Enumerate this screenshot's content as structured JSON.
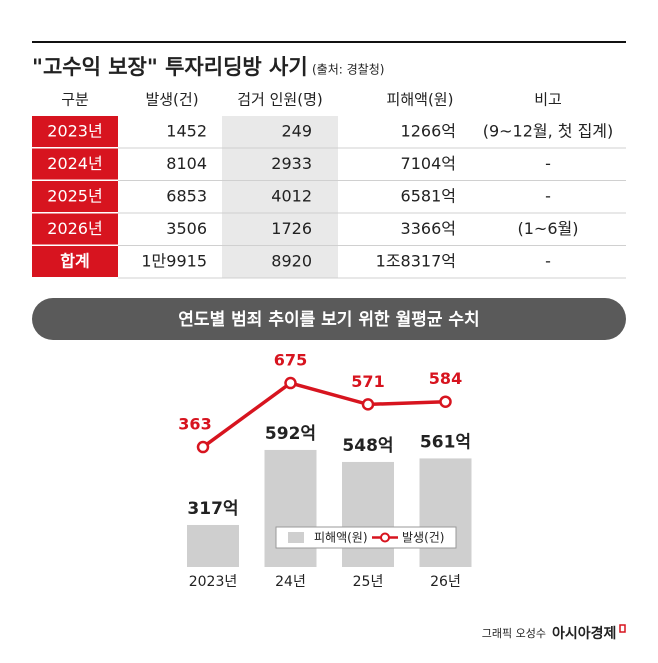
{
  "header": {
    "title": "\"고수익 보장\" 투자리딩방 사기",
    "source": "(출처: 경찰청)"
  },
  "table": {
    "columns": [
      "구분",
      "발생(건)",
      "검거 인원(명)",
      "피해액(원)",
      "비고"
    ],
    "rows": [
      [
        "2023년",
        1452,
        249,
        "1266억",
        "(9~12월, 첫 집계)"
      ],
      [
        "2024년",
        8104,
        2933,
        "7104억",
        "-"
      ],
      [
        "2025년",
        6853,
        4012,
        "6581억",
        "-"
      ],
      [
        "2026년",
        3506,
        1726,
        "3366억",
        "(1~6월)"
      ],
      [
        "합계",
        "1만9915",
        8920,
        "1조8317억",
        "-"
      ]
    ]
  },
  "chart_data": {
    "type": "bar-line",
    "title": "연도별 범죄 추이를 보기 위한 월평균 수치",
    "categories": [
      "2023년",
      "24년",
      "25년",
      "26년"
    ],
    "series": [
      {
        "name": "피해액(원)",
        "type": "bar",
        "color": "#cfcfcf",
        "values": [
          317,
          592,
          548,
          561
        ],
        "value_labels": [
          "317억",
          "592억",
          "548억",
          "561억"
        ]
      },
      {
        "name": "발생(건)",
        "type": "line",
        "axis": "y2",
        "color": "#d7141f",
        "values": [
          363,
          675,
          571,
          584
        ]
      }
    ],
    "ylim": [
      163,
      995
    ],
    "y2lim": [
      -222,
      885
    ],
    "legend": "bottom"
  },
  "footer": {
    "credit": "그래픽 오성수",
    "brand": "아시아경제"
  }
}
